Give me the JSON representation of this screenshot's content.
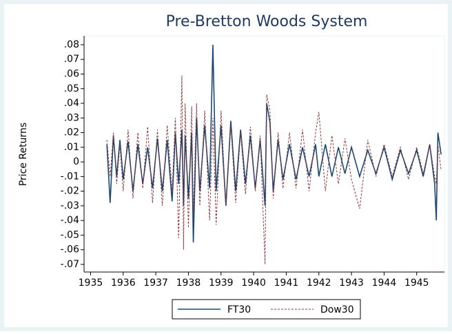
{
  "chart_data": {
    "type": "line",
    "title": "Pre-Bretton Woods System",
    "y_label": "Price Returns",
    "x": [
      1935.5,
      1935.6,
      1935.7,
      1935.8,
      1935.9,
      1936.0,
      1936.15,
      1936.3,
      1936.45,
      1936.6,
      1936.75,
      1936.9,
      1937.05,
      1937.2,
      1937.35,
      1937.5,
      1937.6,
      1937.7,
      1937.8,
      1937.85,
      1937.9,
      1938.0,
      1938.1,
      1938.15,
      1938.25,
      1938.35,
      1938.5,
      1938.65,
      1938.75,
      1938.85,
      1939.0,
      1939.15,
      1939.3,
      1939.45,
      1939.6,
      1939.75,
      1939.9,
      1940.05,
      1940.2,
      1940.35,
      1940.4,
      1940.5,
      1940.6,
      1940.75,
      1940.9,
      1941.1,
      1941.3,
      1941.5,
      1941.7,
      1941.9,
      1942.0,
      1942.2,
      1942.4,
      1942.6,
      1942.8,
      1943.0,
      1943.25,
      1943.5,
      1943.75,
      1944.0,
      1944.25,
      1944.5,
      1944.75,
      1945.0,
      1945.2,
      1945.4,
      1945.55,
      1945.6,
      1945.65,
      1945.75
    ],
    "series": [
      {
        "name": "FT30",
        "color": "#1a476f",
        "dashed": false,
        "values": [
          0.012,
          -0.028,
          0.018,
          -0.01,
          0.015,
          -0.012,
          0.014,
          -0.02,
          0.012,
          -0.015,
          0.01,
          -0.018,
          0.016,
          -0.02,
          0.015,
          -0.027,
          0.02,
          -0.015,
          0.022,
          -0.03,
          0.018,
          -0.025,
          0.02,
          -0.055,
          0.03,
          -0.02,
          0.025,
          -0.018,
          0.08,
          -0.02,
          0.025,
          -0.03,
          0.028,
          -0.02,
          0.022,
          -0.015,
          0.018,
          -0.018,
          0.015,
          -0.03,
          0.04,
          0.027,
          -0.02,
          0.015,
          -0.012,
          0.012,
          -0.012,
          0.01,
          -0.01,
          0.012,
          -0.01,
          0.012,
          -0.01,
          0.01,
          -0.008,
          0.01,
          -0.01,
          0.008,
          -0.008,
          0.01,
          -0.012,
          0.008,
          -0.008,
          0.008,
          -0.01,
          0.012,
          -0.015,
          -0.04,
          0.02,
          0.005
        ]
      },
      {
        "name": "Dow30",
        "color": "#90353b",
        "dashed": true,
        "values": [
          0.015,
          -0.01,
          0.02,
          -0.015,
          0.012,
          -0.02,
          0.022,
          -0.025,
          0.02,
          -0.018,
          0.024,
          -0.028,
          0.022,
          -0.03,
          0.025,
          -0.02,
          0.03,
          -0.052,
          0.059,
          -0.06,
          0.04,
          -0.045,
          0.038,
          -0.035,
          0.04,
          -0.03,
          0.035,
          -0.04,
          0.03,
          -0.043,
          0.035,
          -0.03,
          0.025,
          -0.028,
          0.02,
          -0.022,
          0.024,
          -0.02,
          0.018,
          -0.07,
          0.046,
          0.035,
          -0.025,
          0.02,
          -0.018,
          0.02,
          -0.018,
          0.022,
          -0.02,
          0.02,
          0.034,
          -0.02,
          0.018,
          -0.015,
          0.016,
          -0.012,
          -0.032,
          0.015,
          -0.01,
          0.012,
          -0.01,
          0.01,
          -0.012,
          0.01,
          -0.008,
          0.012,
          -0.01,
          -0.015,
          0.012,
          -0.006
        ]
      }
    ],
    "xlim": [
      1934.8,
      1945.85
    ],
    "xticks": [
      1935,
      1936,
      1937,
      1938,
      1939,
      1940,
      1941,
      1942,
      1943,
      1944,
      1945
    ],
    "ylim": [
      -0.0752,
      0.0861
    ],
    "yticks": [
      {
        "value": 0.08,
        "label": ".08"
      },
      {
        "value": 0.07,
        "label": ".07"
      },
      {
        "value": 0.06,
        "label": ".06"
      },
      {
        "value": 0.05,
        "label": ".05"
      },
      {
        "value": 0.04,
        "label": ".04"
      },
      {
        "value": 0.03,
        "label": ".03"
      },
      {
        "value": 0.02,
        "label": ".02"
      },
      {
        "value": 0.01,
        "label": ".01"
      },
      0,
      {
        "value": -0.01,
        "label": "-.01"
      },
      {
        "value": -0.02,
        "label": "-.02"
      },
      {
        "value": -0.03,
        "label": "-.03"
      },
      {
        "value": -0.04,
        "label": "-.04"
      },
      {
        "value": -0.05,
        "label": "-.05"
      },
      {
        "value": -0.06,
        "label": "-.06"
      },
      {
        "value": -0.07,
        "label": "-.07"
      }
    ],
    "legend": "bottom"
  }
}
